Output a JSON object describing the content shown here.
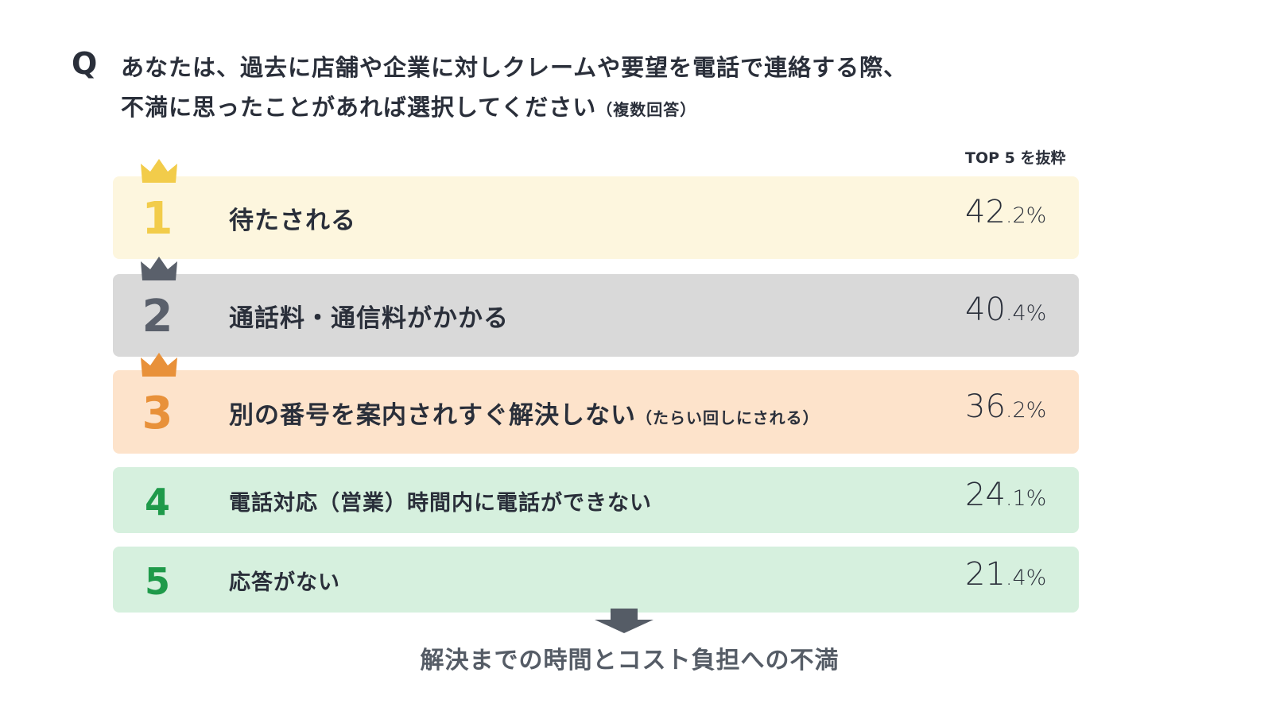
{
  "question": {
    "marker": "Q",
    "line1": "あなたは、過去に店舗や企業に対しクレームや要望を電話で連絡する際、",
    "line2": "不満に思ったことがあれば選択してください",
    "note": "（複数回答）"
  },
  "top_label": "TOP 5 を抜粋",
  "rows": [
    {
      "rank": "1",
      "label": "待たされる",
      "sub": "",
      "pct_main": "42",
      "pct_dec": ".2",
      "unit": "%",
      "bg": "#fdf6de",
      "accent": "#f2cc4a",
      "crown": true
    },
    {
      "rank": "2",
      "label": "通話料・通信料がかかる",
      "sub": "",
      "pct_main": "40",
      "pct_dec": ".4",
      "unit": "%",
      "bg": "#d9d9d9",
      "accent": "#5a606b",
      "crown": true
    },
    {
      "rank": "3",
      "label": "別の番号を案内されすぐ解決しない",
      "sub": "（たらい回しにされる）",
      "pct_main": "36",
      "pct_dec": ".2",
      "unit": "%",
      "bg": "#fde3cb",
      "accent": "#e8913a",
      "crown": true
    },
    {
      "rank": "4",
      "label": "電話対応（営業）時間内に電話ができない",
      "sub": "",
      "pct_main": "24",
      "pct_dec": ".1",
      "unit": "%",
      "bg": "#d6f0de",
      "accent": "#1f9a4a",
      "crown": false
    },
    {
      "rank": "5",
      "label": "応答がない",
      "sub": "",
      "pct_main": "21",
      "pct_dec": ".4",
      "unit": "%",
      "bg": "#d6f0de",
      "accent": "#1f9a4a",
      "crown": false
    }
  ],
  "footer": "解決までの時間とコスト負担への不満"
}
